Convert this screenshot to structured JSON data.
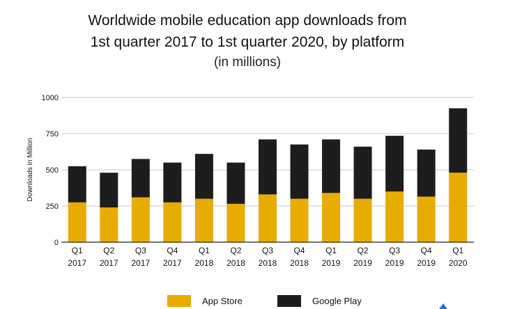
{
  "title_lines": [
    "Worldwide mobile education app downloads from",
    "1st quarter 2017 to 1st quarter 2020, by platform"
  ],
  "subtitle": "(in millions)",
  "colors": {
    "app_store": "#e8ab00",
    "google_play": "#1d1d1d",
    "grid": "#c8c8c8"
  },
  "chart_data": {
    "type": "bar",
    "stacked": true,
    "categories": [
      "Q1 2017",
      "Q2 2017",
      "Q3 2017",
      "Q4 2017",
      "Q1 2018",
      "Q2 2018",
      "Q3 2018",
      "Q4 2018",
      "Q1 2019",
      "Q2 2019",
      "Q3 2019",
      "Q4 2019",
      "Q1 2020"
    ],
    "category_lines": [
      [
        "Q1",
        "2017"
      ],
      [
        "Q2",
        "2017"
      ],
      [
        "Q3",
        "2017"
      ],
      [
        "Q4",
        "2017"
      ],
      [
        "Q1",
        "2018"
      ],
      [
        "Q2",
        "2018"
      ],
      [
        "Q3",
        "2018"
      ],
      [
        "Q4",
        "2018"
      ],
      [
        "Q1",
        "2019"
      ],
      [
        "Q2",
        "2019"
      ],
      [
        "Q3",
        "2019"
      ],
      [
        "Q4",
        "2019"
      ],
      [
        "Q1",
        "2020"
      ]
    ],
    "series": [
      {
        "name": "App Store",
        "values": [
          275,
          240,
          310,
          275,
          300,
          265,
          330,
          300,
          340,
          300,
          350,
          315,
          480
        ]
      },
      {
        "name": "Google Play",
        "values": [
          250,
          240,
          265,
          275,
          310,
          285,
          380,
          375,
          370,
          360,
          385,
          325,
          445
        ]
      }
    ],
    "ylabel": "Downloads in Million",
    "xlabel": "",
    "ylim": [
      0,
      1000
    ],
    "yticks": [
      0,
      250,
      500,
      750,
      1000
    ],
    "ytick_labels": [
      "0",
      "250",
      "500",
      "750",
      "1000"
    ],
    "grid": true,
    "legend_position": "bottom"
  }
}
